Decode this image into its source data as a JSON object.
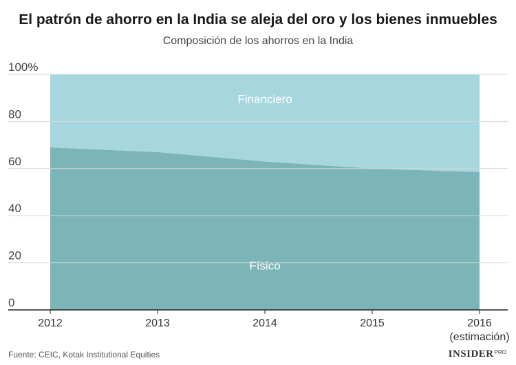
{
  "chart_data": {
    "type": "area",
    "stacked": true,
    "title": "El patrón de ahorro en la India se aleja del oro y los bienes inmuebles",
    "subtitle": "Composición de los ahorros en la India",
    "categories": [
      "2012",
      "2013",
      "2014",
      "2015",
      "2016"
    ],
    "category_sublabels": [
      "",
      "",
      "",
      "",
      "(estimación)"
    ],
    "series": [
      {
        "name": "Físico",
        "values": [
          69,
          67,
          63,
          60,
          58.5
        ],
        "color": "#7bb5b8"
      },
      {
        "name": "Financiero",
        "values": [
          31,
          33,
          37,
          40,
          41.5
        ],
        "color": "#a6d7df"
      }
    ],
    "y_ticks": [
      {
        "value": 0,
        "label": "0"
      },
      {
        "value": 20,
        "label": "20"
      },
      {
        "value": 40,
        "label": "40"
      },
      {
        "value": 60,
        "label": "60"
      },
      {
        "value": 80,
        "label": "80"
      },
      {
        "value": 100,
        "label": "100%"
      }
    ],
    "ylim": [
      0,
      100
    ],
    "grid": true,
    "xlabel": "",
    "ylabel": ""
  },
  "footer": {
    "source": "Fuente: CEIC, Kotak Institutional Equities",
    "brand": "INSIDER",
    "brand_suffix": "PRO"
  }
}
